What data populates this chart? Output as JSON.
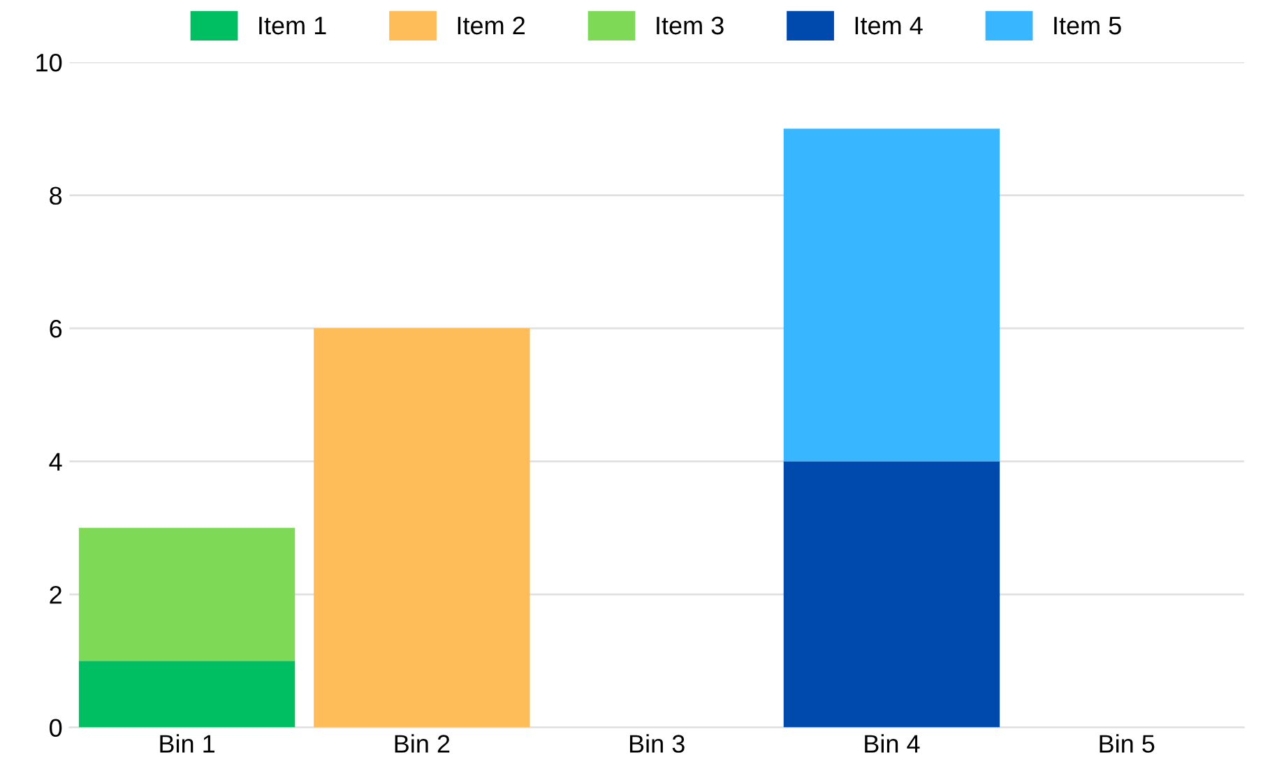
{
  "chart_data": {
    "type": "bar",
    "stacked": true,
    "categories": [
      "Bin 1",
      "Bin 2",
      "Bin 3",
      "Bin 4",
      "Bin 5"
    ],
    "series": [
      {
        "name": "Item 1",
        "color": "#00bf63",
        "values": [
          1,
          null,
          null,
          null,
          null
        ]
      },
      {
        "name": "Item 2",
        "color": "#ffbd59",
        "values": [
          null,
          6,
          null,
          null,
          null
        ]
      },
      {
        "name": "Item 3",
        "color": "#7ed957",
        "values": [
          2,
          null,
          null,
          null,
          null
        ]
      },
      {
        "name": "Item 4",
        "color": "#004aad",
        "values": [
          null,
          null,
          null,
          4,
          null
        ]
      },
      {
        "name": "Item 5",
        "color": "#38b6ff",
        "values": [
          null,
          null,
          null,
          5,
          null
        ]
      }
    ],
    "ylim": [
      0,
      10
    ],
    "yticks": [
      0,
      2,
      4,
      6,
      8,
      10
    ],
    "grid": "y",
    "legend": "top"
  }
}
